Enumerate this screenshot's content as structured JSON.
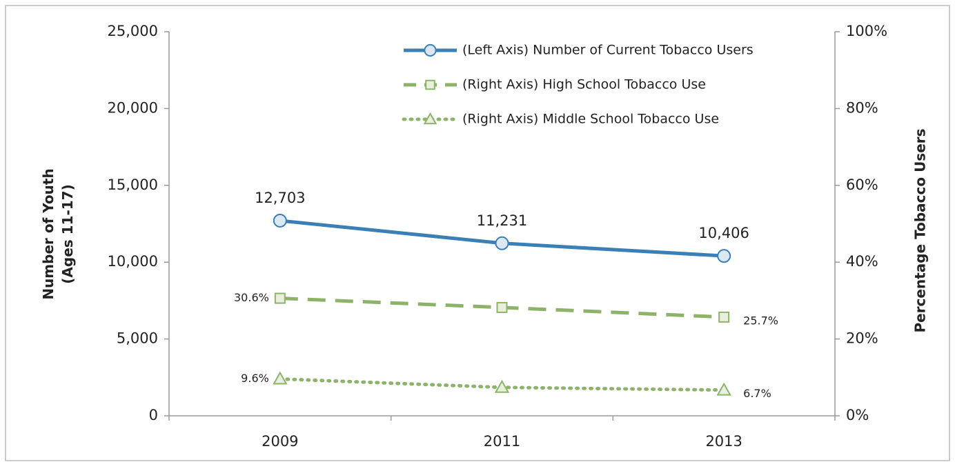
{
  "chart_data": {
    "type": "line",
    "categories": [
      "2009",
      "2011",
      "2013"
    ],
    "ylabel": [
      "Number of Youth",
      "(Ages 11-17)"
    ],
    "y2label": "Percentage Tobacco Users",
    "ylim": [
      0,
      25000
    ],
    "yticks": [
      0,
      {
        "value": 5000,
        "label": "5,000"
      },
      {
        "value": 10000,
        "label": "10,000"
      },
      {
        "value": 15000,
        "label": "15,000"
      },
      {
        "value": 20000,
        "label": "20,000"
      },
      {
        "value": 25000,
        "label": "25,000"
      }
    ],
    "y2lim": [
      0,
      100
    ],
    "y2ticks": [
      {
        "value": 0,
        "label": "0%"
      },
      {
        "value": 20,
        "label": "20%"
      },
      {
        "value": 40,
        "label": "40%"
      },
      {
        "value": 60,
        "label": "60%"
      },
      {
        "value": 80,
        "label": "80%"
      },
      {
        "value": 100,
        "label": "100%"
      }
    ],
    "legend": "top-right",
    "series": [
      {
        "name": "(Left Axis) Number of Current Tobacco Users",
        "color": "#3a7fb5",
        "marker_fill": "#dbe8f4",
        "line_style": "solid",
        "marker": "circle",
        "axis": "y",
        "values": [
          12703,
          11231,
          10406
        ],
        "value_labels": [
          "12,703",
          "11,231",
          "10,406"
        ]
      },
      {
        "name": "(Right Axis) High School Tobacco Use",
        "color": "#8cb369",
        "marker_fill": "#e8f0dd",
        "line_style": "dashed",
        "marker": "square",
        "axis": "y2",
        "values": [
          30.6,
          28.2,
          25.7
        ],
        "value_labels": [
          "30.6%",
          null,
          "25.7%"
        ]
      },
      {
        "name": "(Right Axis) Middle School Tobacco Use",
        "color": "#8cb369",
        "marker_fill": "#e8f0dd",
        "line_style": "dotted",
        "marker": "triangle",
        "axis": "y2",
        "values": [
          9.6,
          7.4,
          6.7
        ],
        "value_labels": [
          "9.6%",
          null,
          "6.7%"
        ]
      }
    ]
  }
}
